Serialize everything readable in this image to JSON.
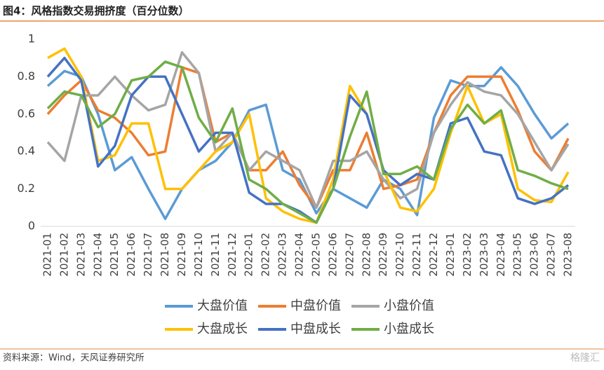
{
  "chart_data": {
    "type": "line",
    "title": "图4：风格指数交易拥挤度（百分位数）",
    "source": "资料来源：Wind，天风证券研究所",
    "watermark": "格隆汇",
    "categories": [
      "2021-01",
      "2021-02",
      "2021-03",
      "2021-04",
      "2021-05",
      "2021-06",
      "2021-07",
      "2021-08",
      "2021-09",
      "2021-10",
      "2021-11",
      "2021-12",
      "2022-01",
      "2022-02",
      "2022-03",
      "2022-04",
      "2022-05",
      "2022-06",
      "2022-07",
      "2022-08",
      "2022-09",
      "2022-10",
      "2022-11",
      "2022-12",
      "2023-01",
      "2023-02",
      "2023-03",
      "2023-04",
      "2023-05",
      "2023-06",
      "2023-07",
      "2023-08"
    ],
    "ylim": [
      0,
      1
    ],
    "yticks": [
      0,
      0.2,
      0.4,
      0.6,
      0.8,
      1
    ],
    "series": [
      {
        "name": "大盘价值",
        "color": "#5b9bd5",
        "values": [
          0.75,
          0.83,
          0.8,
          0.6,
          0.3,
          0.37,
          0.2,
          0.04,
          0.2,
          0.3,
          0.35,
          0.45,
          0.62,
          0.65,
          0.3,
          0.25,
          0.07,
          0.2,
          0.15,
          0.1,
          0.25,
          0.2,
          0.06,
          0.58,
          0.78,
          0.75,
          0.75,
          0.85,
          0.75,
          0.6,
          0.47,
          0.55
        ]
      },
      {
        "name": "中盘价值",
        "color": "#ed7d31",
        "values": [
          0.6,
          0.7,
          0.78,
          0.62,
          0.58,
          0.5,
          0.38,
          0.4,
          0.85,
          0.82,
          0.45,
          0.5,
          0.3,
          0.3,
          0.4,
          0.22,
          0.1,
          0.3,
          0.3,
          0.5,
          0.2,
          0.22,
          0.25,
          0.5,
          0.7,
          0.8,
          0.8,
          0.8,
          0.62,
          0.4,
          0.3,
          0.47
        ]
      },
      {
        "name": "小盘价值",
        "color": "#a5a5a5",
        "values": [
          0.45,
          0.35,
          0.7,
          0.7,
          0.8,
          0.7,
          0.62,
          0.65,
          0.93,
          0.82,
          0.4,
          0.5,
          0.3,
          0.4,
          0.35,
          0.3,
          0.1,
          0.35,
          0.35,
          0.4,
          0.25,
          0.15,
          0.2,
          0.5,
          0.65,
          0.77,
          0.72,
          0.7,
          0.6,
          0.45,
          0.3,
          0.44
        ]
      },
      {
        "name": "大盘成长",
        "color": "#ffc000",
        "values": [
          0.9,
          0.95,
          0.8,
          0.35,
          0.38,
          0.55,
          0.55,
          0.2,
          0.2,
          0.3,
          0.4,
          0.45,
          0.6,
          0.15,
          0.08,
          0.04,
          0.02,
          0.25,
          0.75,
          0.6,
          0.3,
          0.1,
          0.08,
          0.2,
          0.5,
          0.75,
          0.55,
          0.6,
          0.2,
          0.14,
          0.13,
          0.29
        ]
      },
      {
        "name": "中盘成长",
        "color": "#4472c4",
        "values": [
          0.8,
          0.9,
          0.78,
          0.32,
          0.43,
          0.7,
          0.8,
          0.8,
          0.6,
          0.4,
          0.5,
          0.5,
          0.18,
          0.12,
          0.12,
          0.08,
          0.02,
          0.2,
          0.7,
          0.6,
          0.3,
          0.22,
          0.28,
          0.25,
          0.55,
          0.58,
          0.4,
          0.38,
          0.15,
          0.12,
          0.15,
          0.22
        ]
      },
      {
        "name": "小盘成长",
        "color": "#70ad47",
        "values": [
          0.63,
          0.72,
          0.7,
          0.53,
          0.6,
          0.78,
          0.8,
          0.88,
          0.85,
          0.58,
          0.45,
          0.63,
          0.25,
          0.2,
          0.12,
          0.07,
          0.02,
          0.2,
          0.48,
          0.72,
          0.28,
          0.28,
          0.32,
          0.25,
          0.52,
          0.65,
          0.55,
          0.62,
          0.3,
          0.27,
          0.23,
          0.2
        ]
      }
    ]
  }
}
